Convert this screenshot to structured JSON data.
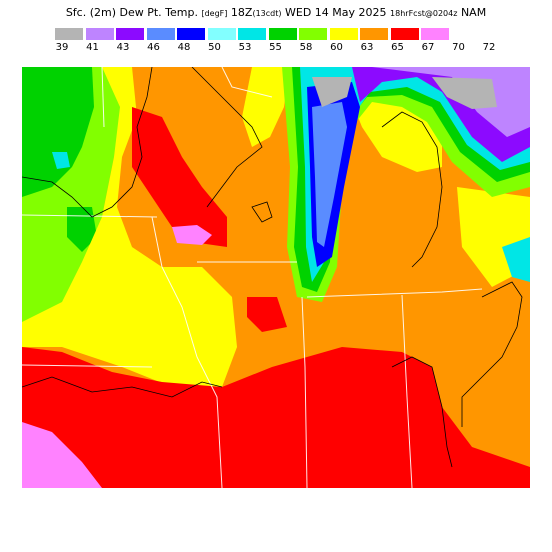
{
  "title": {
    "main": "Sfc. (2m) Dew Pt. Temp.",
    "units": "[degF]",
    "valid": "18Z",
    "local": "(13cdt)",
    "date": "WED 14 May 2025",
    "forecast": "18hrFcst@0204z",
    "model": "NAM"
  },
  "legend": [
    {
      "label": "39",
      "color": "#b4b4b4"
    },
    {
      "label": "41",
      "color": "#be84ff"
    },
    {
      "label": "43",
      "color": "#8c0aff"
    },
    {
      "label": "46",
      "color": "#5a8cff"
    },
    {
      "label": "48",
      "color": "#0000ff"
    },
    {
      "label": "50",
      "color": "#82ffff"
    },
    {
      "label": "53",
      "color": "#00e6e6"
    },
    {
      "label": "55",
      "color": "#00d200"
    },
    {
      "label": "58",
      "color": "#82ff00"
    },
    {
      "label": "60",
      "color": "#ffff00"
    },
    {
      "label": "63",
      "color": "#ff9600"
    },
    {
      "label": "65",
      "color": "#ff0000"
    },
    {
      "label": "67",
      "color": "#ff82ff"
    },
    {
      "label": "70",
      "color": ""
    },
    {
      "label": "72",
      "color": ""
    }
  ]
}
